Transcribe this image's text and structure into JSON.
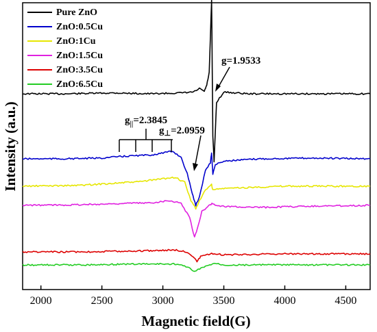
{
  "chart_data": {
    "type": "line",
    "xlabel": "Magnetic field(G)",
    "ylabel": "Intensity (a.u.)",
    "xlim": [
      1850,
      4700
    ],
    "xticks": [
      2000,
      2500,
      3000,
      3500,
      4000,
      4500
    ],
    "xtick_labels": [
      "2000",
      "2500",
      "3000",
      "3500",
      "4000",
      "4500"
    ],
    "yticks_shown": false,
    "legend_position": "top-left",
    "series": [
      {
        "name": "Pure ZnO",
        "color": "#000000",
        "points": [
          [
            1850,
            0.0
          ],
          [
            2200,
            0.0
          ],
          [
            2600,
            0.01
          ],
          [
            2900,
            0.0
          ],
          [
            3150,
            0.01
          ],
          [
            3250,
            0.02
          ],
          [
            3300,
            0.06
          ],
          [
            3340,
            0.03
          ],
          [
            3360,
            0.1
          ],
          [
            3380,
            0.25
          ],
          [
            3400,
            1.1
          ],
          [
            3410,
            -0.5
          ],
          [
            3420,
            -0.8
          ],
          [
            3440,
            -0.1
          ],
          [
            3500,
            0.02
          ],
          [
            3700,
            0.0
          ],
          [
            4000,
            0.0
          ],
          [
            4700,
            0.0
          ]
        ]
      },
      {
        "name": "ZnO:0.5Cu",
        "color": "#0000cc",
        "points": [
          [
            1850,
            0.0
          ],
          [
            2200,
            0.0
          ],
          [
            2500,
            0.01
          ],
          [
            2650,
            0.03
          ],
          [
            2750,
            0.04
          ],
          [
            2900,
            0.05
          ],
          [
            3080,
            0.1
          ],
          [
            3150,
            0.02
          ],
          [
            3200,
            -0.2
          ],
          [
            3240,
            -0.45
          ],
          [
            3270,
            -0.62
          ],
          [
            3300,
            -0.5
          ],
          [
            3350,
            -0.15
          ],
          [
            3390,
            -0.05
          ],
          [
            3400,
            0.08
          ],
          [
            3410,
            -0.2
          ],
          [
            3430,
            -0.08
          ],
          [
            3500,
            -0.03
          ],
          [
            3800,
            0.0
          ],
          [
            4200,
            0.01
          ],
          [
            4700,
            0.0
          ]
        ]
      },
      {
        "name": "ZnO:1Cu",
        "color": "#e6e600",
        "points": [
          [
            1850,
            0.0
          ],
          [
            2300,
            0.01
          ],
          [
            2600,
            0.04
          ],
          [
            2800,
            0.06
          ],
          [
            3000,
            0.1
          ],
          [
            3100,
            0.12
          ],
          [
            3180,
            0.05
          ],
          [
            3230,
            -0.2
          ],
          [
            3270,
            -0.3
          ],
          [
            3300,
            -0.2
          ],
          [
            3350,
            -0.05
          ],
          [
            3400,
            0.02
          ],
          [
            3410,
            -0.05
          ],
          [
            3500,
            -0.03
          ],
          [
            4000,
            0.0
          ],
          [
            4700,
            0.0
          ]
        ]
      },
      {
        "name": "ZnO:1.5Cu",
        "color": "#e020e0",
        "points": [
          [
            1850,
            0.0
          ],
          [
            2200,
            0.01
          ],
          [
            2500,
            0.03
          ],
          [
            2700,
            0.05
          ],
          [
            2900,
            0.06
          ],
          [
            3050,
            0.12
          ],
          [
            3150,
            0.05
          ],
          [
            3220,
            -0.3
          ],
          [
            3260,
            -0.78
          ],
          [
            3280,
            -0.6
          ],
          [
            3320,
            -0.15
          ],
          [
            3380,
            0.0
          ],
          [
            3410,
            0.05
          ],
          [
            3450,
            -0.02
          ],
          [
            3800,
            -0.05
          ],
          [
            4200,
            -0.02
          ],
          [
            4700,
            0.0
          ]
        ]
      },
      {
        "name": "ZnO:3.5Cu",
        "color": "#dd0000",
        "points": [
          [
            1850,
            0.0
          ],
          [
            2300,
            0.0
          ],
          [
            2800,
            0.01
          ],
          [
            3100,
            0.02
          ],
          [
            3200,
            0.0
          ],
          [
            3250,
            -0.05
          ],
          [
            3280,
            -0.1
          ],
          [
            3310,
            -0.05
          ],
          [
            3400,
            -0.02
          ],
          [
            3500,
            -0.03
          ],
          [
            4000,
            -0.02
          ],
          [
            4700,
            -0.02
          ]
        ]
      },
      {
        "name": "ZnO:6.5Cu",
        "color": "#22cc22",
        "points": [
          [
            1850,
            0.0
          ],
          [
            2300,
            0.0
          ],
          [
            2800,
            0.01
          ],
          [
            3100,
            0.01
          ],
          [
            3200,
            -0.02
          ],
          [
            3260,
            -0.08
          ],
          [
            3290,
            -0.05
          ],
          [
            3350,
            -0.02
          ],
          [
            3420,
            0.02
          ],
          [
            3500,
            0.0
          ],
          [
            4000,
            0.0
          ],
          [
            4700,
            0.0
          ]
        ]
      }
    ],
    "annotations": [
      {
        "text": "g=1.9533",
        "target_x": 3410
      },
      {
        "text_main": "g",
        "text_sub": "||",
        "text_value": "=2.3845"
      },
      {
        "text_main": "g",
        "text_sub": "⊥",
        "text_value": "=2.0959",
        "target_x": 3270
      }
    ]
  }
}
